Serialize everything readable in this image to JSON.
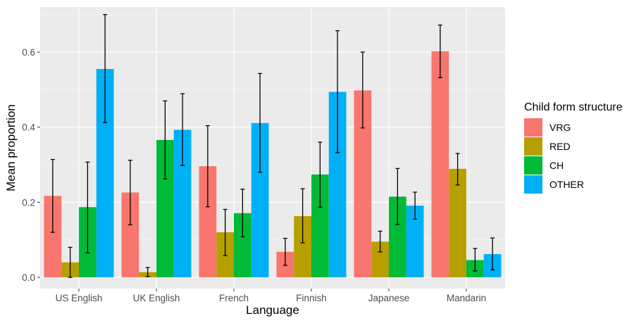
{
  "chart_data": {
    "type": "bar",
    "title": "",
    "xlabel": "Language",
    "ylabel": "Mean proportion",
    "ylim": [
      -0.03,
      0.72
    ],
    "yticks": [
      0.0,
      0.2,
      0.4,
      0.6
    ],
    "ytick_labels": [
      "0.0",
      "0.2",
      "0.4",
      "0.6"
    ],
    "grid": true,
    "legend_position": "right",
    "legend_title": "Child form structure",
    "categories": [
      "US English",
      "UK English",
      "French",
      "Finnish",
      "Japanese",
      "Mandarin"
    ],
    "series": [
      {
        "name": "VRG",
        "color": "#F8766D",
        "values": [
          0.217,
          0.226,
          0.296,
          0.068,
          0.498,
          0.602
        ],
        "err_low": [
          0.12,
          0.14,
          0.188,
          0.032,
          0.398,
          0.532
        ],
        "err_high": [
          0.314,
          0.312,
          0.404,
          0.104,
          0.6,
          0.672
        ]
      },
      {
        "name": "RED",
        "color": "#B79F00",
        "values": [
          0.04,
          0.014,
          0.12,
          0.163,
          0.095,
          0.289
        ],
        "err_low": [
          0.0,
          0.002,
          0.058,
          0.092,
          0.068,
          0.246
        ],
        "err_high": [
          0.08,
          0.026,
          0.181,
          0.236,
          0.123,
          0.33
        ]
      },
      {
        "name": "CH",
        "color": "#00BA38",
        "values": [
          0.187,
          0.366,
          0.171,
          0.274,
          0.215,
          0.046
        ],
        "err_low": [
          0.065,
          0.262,
          0.108,
          0.187,
          0.141,
          0.017
        ],
        "err_high": [
          0.307,
          0.47,
          0.235,
          0.36,
          0.29,
          0.077
        ]
      },
      {
        "name": "OTHER",
        "color": "#00B0F6",
        "values": [
          0.555,
          0.393,
          0.411,
          0.494,
          0.191,
          0.062
        ],
        "err_low": [
          0.412,
          0.298,
          0.28,
          0.332,
          0.155,
          0.02
        ],
        "err_high": [
          0.7,
          0.489,
          0.543,
          0.657,
          0.227,
          0.105
        ]
      }
    ]
  }
}
